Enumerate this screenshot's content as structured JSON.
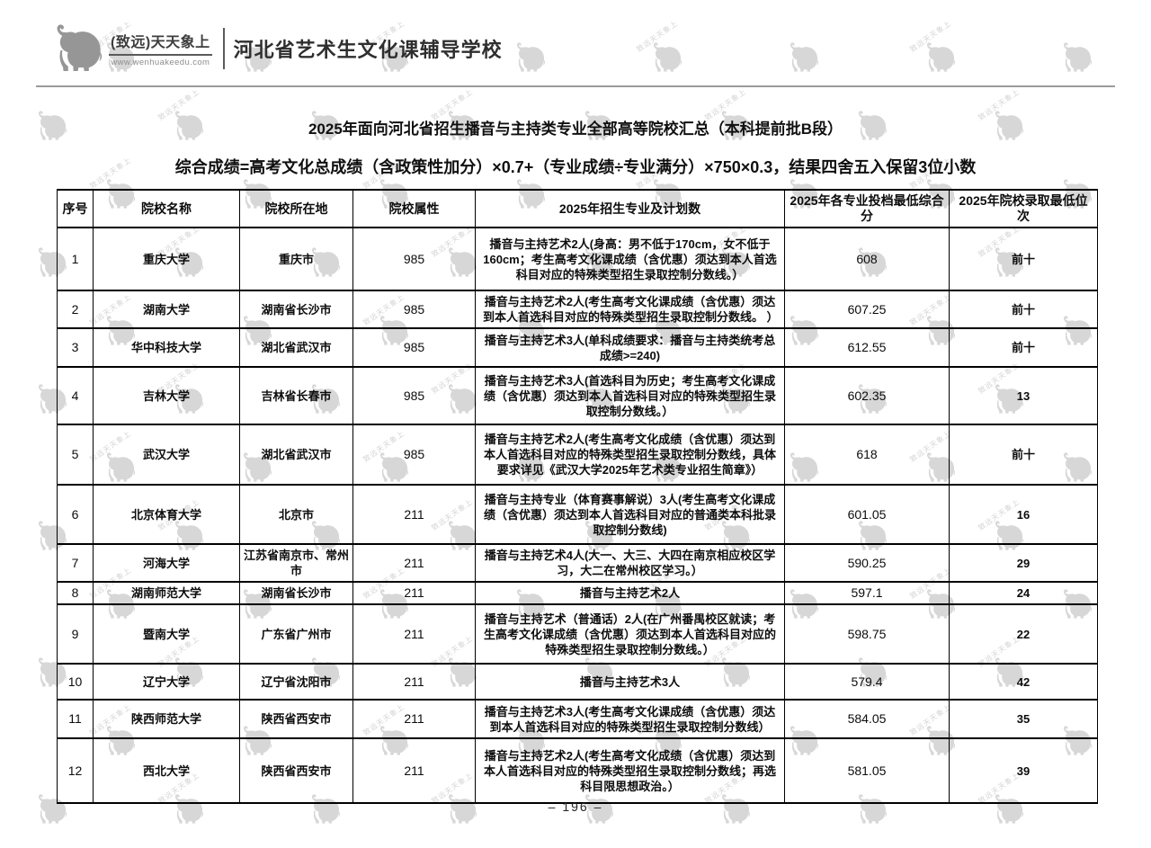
{
  "header": {
    "brand": "(致远)天天象上",
    "url": "www.wenhuakeedu.com",
    "school": "河北省艺术生文化课辅导学校"
  },
  "title": "2025年面向河北省招生播音与主持类专业全部高等院校汇总（本科提前批B段）",
  "formula": "综合成绩=高考文化总成绩（含政策性加分）×0.7+（专业成绩÷专业满分）×750×0.3，结果四舍五入保留3位小数",
  "watermark": {
    "text": "致远天天象上"
  },
  "table": {
    "columns": [
      "序号",
      "院校名称",
      "院校所在地",
      "院校属性",
      "2025年招生专业及计划数",
      "2025年各专业投档最低综合分",
      "2025年院校录取最低位次"
    ],
    "rows": [
      {
        "no": "1",
        "name": "重庆大学",
        "location": "重庆市",
        "attr": "985",
        "plan": "播音与主持艺术2人(身高：男不低于170cm，女不低于160cm；考生高考文化课成绩（含优惠）须达到本人首选科目对应的特殊类型招生录取控制分数线。）",
        "score": "608",
        "rank": "前十"
      },
      {
        "no": "2",
        "name": "湖南大学",
        "location": "湖南省长沙市",
        "attr": "985",
        "plan": "播音与主持艺术2人(考生高考文化课成绩（含优惠）须达到本人首选科目对应的特殊类型招生录取控制分数线。 ）",
        "score": "607.25",
        "rank": "前十"
      },
      {
        "no": "3",
        "name": "华中科技大学",
        "location": "湖北省武汉市",
        "attr": "985",
        "plan": "播音与主持艺术3人(单科成绩要求：播音与主持类统考总成绩>=240)",
        "score": "612.55",
        "rank": "前十"
      },
      {
        "no": "4",
        "name": "吉林大学",
        "location": "吉林省长春市",
        "attr": "985",
        "plan": "播音与主持艺术3人(首选科目为历史；考生高考文化课成绩（含优惠）须达到本人首选科目对应的特殊类型招生录取控制分数线。）",
        "score": "602.35",
        "rank": "13"
      },
      {
        "no": "5",
        "name": "武汉大学",
        "location": "湖北省武汉市",
        "attr": "985",
        "plan": "播音与主持艺术2人(考生高考文化成绩（含优惠）须达到本人首选科目对应的特殊类型招生录取控制分数线，具体要求详见《武汉大学2025年艺术类专业招生简章》）",
        "score": "618",
        "rank": "前十"
      },
      {
        "no": "6",
        "name": "北京体育大学",
        "location": "北京市",
        "attr": "211",
        "plan": "播音与主持专业（体育赛事解说）3人(考生高考文化课成绩（含优惠）须达到本人首选科目对应的普通类本科批录取控制分数线)",
        "score": "601.05",
        "rank": "16"
      },
      {
        "no": "7",
        "name": "河海大学",
        "location": "江苏省南京市、常州市",
        "attr": "211",
        "plan": "播音与主持艺术4人(大一、大三、大四在南京相应校区学习，大二在常州校区学习。）",
        "score": "590.25",
        "rank": "29"
      },
      {
        "no": "8",
        "name": "湖南师范大学",
        "location": "湖南省长沙市",
        "attr": "211",
        "plan": "播音与主持艺术2人",
        "score": "597.1",
        "rank": "24"
      },
      {
        "no": "9",
        "name": "暨南大学",
        "location": "广东省广州市",
        "attr": "211",
        "plan": "播音与主持艺术（普通话）2人(在广州番禺校区就读；考生高考文化课成绩（含优惠）须达到本人首选科目对应的特殊类型招生录取控制分数线。）",
        "score": "598.75",
        "rank": "22"
      },
      {
        "no": "10",
        "name": "辽宁大学",
        "location": "辽宁省沈阳市",
        "attr": "211",
        "plan": "播音与主持艺术3人",
        "score": "579.4",
        "rank": "42"
      },
      {
        "no": "11",
        "name": "陕西师范大学",
        "location": "陕西省西安市",
        "attr": "211",
        "plan": "播音与主持艺术3人(考生高考文化课成绩（含优惠）须达到本人首选科目对应的特殊类型招生录取控制分数线）",
        "score": "584.05",
        "rank": "35"
      },
      {
        "no": "12",
        "name": "西北大学",
        "location": "陕西省西安市",
        "attr": "211",
        "plan": "播音与主持艺术2人(考生高考文化成绩（含优惠）须达到本人首选科目对应的特殊类型招生录取控制分数线；再选科目限思想政治。）",
        "score": "581.05",
        "rank": "39"
      }
    ]
  },
  "footer": {
    "page_number": "– 196 –"
  }
}
